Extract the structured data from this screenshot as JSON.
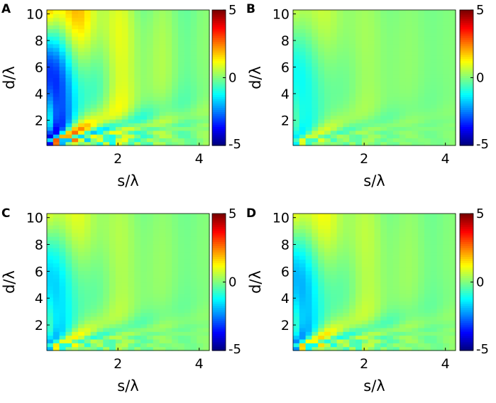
{
  "chart_data": [
    {
      "panel": "A",
      "type": "heatmap",
      "xlabel": "s/λ",
      "ylabel": "d/λ",
      "xticks": [
        2,
        4
      ],
      "yticks": [
        2,
        4,
        6,
        8,
        10
      ],
      "xlim": [
        0.25,
        4.25
      ],
      "ylim": [
        0.1,
        10.3
      ],
      "colorbar": {
        "ticks": [
          -5,
          0,
          5
        ],
        "range": [
          -5,
          5
        ],
        "colormap": "jet"
      },
      "amplitude": 1.0,
      "grid": {
        "nx": 26,
        "ny": 36
      },
      "pattern": "decaying ripple bands that fan out from the lower-left corner; strong red/blue near the origin, mostly green toward the right"
    },
    {
      "panel": "B",
      "type": "heatmap",
      "xlabel": "s/λ",
      "ylabel": "d/λ",
      "xticks": [
        2,
        4
      ],
      "yticks": [
        2,
        4,
        6,
        8,
        10
      ],
      "xlim": [
        0.25,
        4.25
      ],
      "ylim": [
        0.1,
        10.3
      ],
      "colorbar": {
        "ticks": [
          -5,
          0,
          5
        ],
        "range": [
          -5,
          5
        ],
        "colormap": "jet"
      },
      "amplitude": 0.35,
      "grid": {
        "nx": 26,
        "ny": 36
      },
      "pattern": "the same band structure as A at much lower amplitude; mostly green with faint cyan and yellow bands"
    },
    {
      "panel": "C",
      "type": "heatmap",
      "xlabel": "s/λ",
      "ylabel": "d/λ",
      "xticks": [
        2,
        4
      ],
      "yticks": [
        2,
        4,
        6,
        8,
        10
      ],
      "xlim": [
        0.25,
        4.25
      ],
      "ylim": [
        0.1,
        10.3
      ],
      "colorbar": {
        "ticks": [
          -5,
          0,
          5
        ],
        "range": [
          -5,
          5
        ],
        "colormap": "jet"
      },
      "amplitude": 0.5,
      "grid": {
        "nx": 26,
        "ny": 36
      },
      "pattern": "the same band structure at moderate amplitude; stronger red/blue only close to the lower-left corner"
    },
    {
      "panel": "D",
      "type": "heatmap",
      "xlabel": "s/λ",
      "ylabel": "d/λ",
      "xticks": [
        2,
        4
      ],
      "yticks": [
        2,
        4,
        6,
        8,
        10
      ],
      "xlim": [
        0.25,
        4.25
      ],
      "ylim": [
        0.1,
        10.3
      ],
      "colorbar": {
        "ticks": [
          -5,
          0,
          5
        ],
        "range": [
          -5,
          5
        ],
        "colormap": "jet"
      },
      "amplitude": 0.6,
      "grid": {
        "nx": 26,
        "ny": 36
      },
      "pattern": "the same band structure at moderate amplitude; red and orange bands near the origin, a blue band along the left edge"
    }
  ]
}
